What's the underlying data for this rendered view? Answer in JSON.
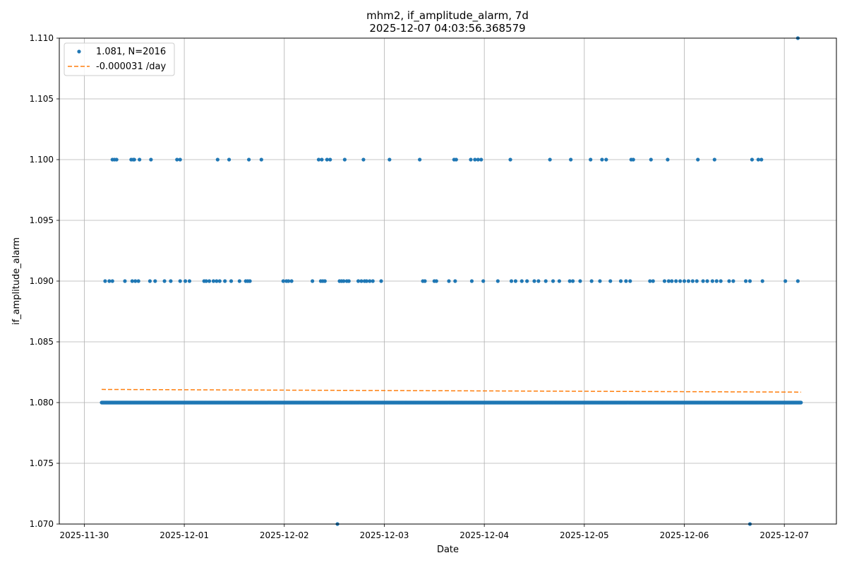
{
  "chart_data": {
    "type": "scatter",
    "title_lines": [
      "mhm2, if_amplitude_alarm, 7d",
      "2025-12-07 04:03:56.368579"
    ],
    "xlabel": "Date",
    "ylabel": "if_amplitude_alarm",
    "x_ticks": [
      "2025-11-30",
      "2025-12-01",
      "2025-12-02",
      "2025-12-03",
      "2025-12-04",
      "2025-12-05",
      "2025-12-06",
      "2025-12-07"
    ],
    "y_ticks": [
      "1.070",
      "1.075",
      "1.080",
      "1.085",
      "1.090",
      "1.095",
      "1.100",
      "1.105",
      "1.110"
    ],
    "xlim": [
      "2025-11-29T18:00",
      "2025-12-07T12:30"
    ],
    "ylim": [
      1.07,
      1.11
    ],
    "grid": true,
    "legend_position": "top-left",
    "colors": {
      "points": "#1f77b4",
      "trend": "#ff7f0e"
    },
    "series": [
      {
        "name": "1.081, N=2016",
        "kind": "scatter",
        "baseline": {
          "y": 1.08,
          "start": "2025-11-30T04:10",
          "end": "2025-12-07T04:00",
          "count": 1805
        },
        "points": [
          {
            "y": 1.09,
            "x": [
              "2025-11-30T05:00",
              "2025-11-30T06:00",
              "2025-11-30T06:45",
              "2025-11-30T09:45",
              "2025-11-30T11:30",
              "2025-11-30T12:15",
              "2025-11-30T13:00",
              "2025-11-30T15:45",
              "2025-11-30T17:00",
              "2025-11-30T19:15",
              "2025-11-30T20:45",
              "2025-11-30T23:00",
              "2025-12-01T00:15",
              "2025-12-01T01:15",
              "2025-12-01T04:45",
              "2025-12-01T05:15",
              "2025-12-01T06:00",
              "2025-12-01T07:00",
              "2025-12-01T07:45",
              "2025-12-01T08:30",
              "2025-12-01T09:45",
              "2025-12-01T11:15",
              "2025-12-01T13:15",
              "2025-12-01T14:45",
              "2025-12-01T15:15",
              "2025-12-01T15:45",
              "2025-12-01T23:45",
              "2025-12-02T00:30",
              "2025-12-02T01:00",
              "2025-12-02T01:45",
              "2025-12-02T06:45",
              "2025-12-02T08:45",
              "2025-12-02T09:15",
              "2025-12-02T09:45",
              "2025-12-02T13:15",
              "2025-12-02T13:45",
              "2025-12-02T14:15",
              "2025-12-02T15:00",
              "2025-12-02T15:30",
              "2025-12-02T17:45",
              "2025-12-02T18:30",
              "2025-12-02T19:15",
              "2025-12-02T19:45",
              "2025-12-02T20:30",
              "2025-12-02T21:15",
              "2025-12-02T23:15",
              "2025-12-03T09:15",
              "2025-12-03T09:45",
              "2025-12-03T12:00",
              "2025-12-03T12:30",
              "2025-12-03T15:30",
              "2025-12-03T17:00",
              "2025-12-03T21:00",
              "2025-12-03T23:45",
              "2025-12-04T03:15",
              "2025-12-04T06:30",
              "2025-12-04T07:30",
              "2025-12-04T09:00",
              "2025-12-04T10:15",
              "2025-12-04T12:00",
              "2025-12-04T13:00",
              "2025-12-04T14:45",
              "2025-12-04T16:30",
              "2025-12-04T18:00",
              "2025-12-04T20:30",
              "2025-12-04T21:15",
              "2025-12-04T23:00",
              "2025-12-05T01:45",
              "2025-12-05T03:45",
              "2025-12-05T06:15",
              "2025-12-05T08:45",
              "2025-12-05T10:00",
              "2025-12-05T11:00",
              "2025-12-05T15:45",
              "2025-12-05T16:30",
              "2025-12-05T19:15",
              "2025-12-05T20:15",
              "2025-12-05T21:00",
              "2025-12-05T22:00",
              "2025-12-05T23:00",
              "2025-12-06T00:00",
              "2025-12-06T01:00",
              "2025-12-06T02:00",
              "2025-12-06T03:00",
              "2025-12-06T04:30",
              "2025-12-06T05:30",
              "2025-12-06T06:45",
              "2025-12-06T07:45",
              "2025-12-06T08:45",
              "2025-12-06T10:45",
              "2025-12-06T11:45",
              "2025-12-06T14:45",
              "2025-12-06T15:45",
              "2025-12-06T18:45",
              "2025-12-07T00:15",
              "2025-12-07T03:15"
            ]
          },
          {
            "y": 1.1,
            "x": [
              "2025-11-30T06:45",
              "2025-11-30T07:15",
              "2025-11-30T07:45",
              "2025-11-30T11:15",
              "2025-11-30T11:45",
              "2025-11-30T12:00",
              "2025-11-30T13:15",
              "2025-11-30T16:00",
              "2025-11-30T22:15",
              "2025-11-30T23:00",
              "2025-12-01T08:00",
              "2025-12-01T10:45",
              "2025-12-01T15:30",
              "2025-12-01T18:30",
              "2025-12-02T08:15",
              "2025-12-02T09:00",
              "2025-12-02T10:15",
              "2025-12-02T11:00",
              "2025-12-02T14:30",
              "2025-12-02T19:00",
              "2025-12-03T01:15",
              "2025-12-03T08:30",
              "2025-12-03T16:45",
              "2025-12-03T17:15",
              "2025-12-03T20:45",
              "2025-12-03T21:45",
              "2025-12-03T22:30",
              "2025-12-03T23:15",
              "2025-12-04T06:15",
              "2025-12-04T15:45",
              "2025-12-04T20:45",
              "2025-12-05T01:30",
              "2025-12-05T04:15",
              "2025-12-05T05:15",
              "2025-12-05T11:15",
              "2025-12-05T11:45",
              "2025-12-05T16:00",
              "2025-12-05T20:00",
              "2025-12-06T03:15",
              "2025-12-06T07:15",
              "2025-12-06T16:15",
              "2025-12-06T17:45",
              "2025-12-06T18:30"
            ]
          },
          {
            "y": 1.07,
            "x": [
              "2025-12-02T12:45",
              "2025-12-06T15:45"
            ]
          },
          {
            "y": 1.11,
            "x": [
              "2025-12-07T03:15"
            ]
          }
        ]
      },
      {
        "name": "-0.000031 /day",
        "kind": "trend",
        "x": [
          "2025-11-30T04:10",
          "2025-12-07T04:00"
        ],
        "y": [
          1.08108,
          1.08086
        ]
      }
    ]
  }
}
